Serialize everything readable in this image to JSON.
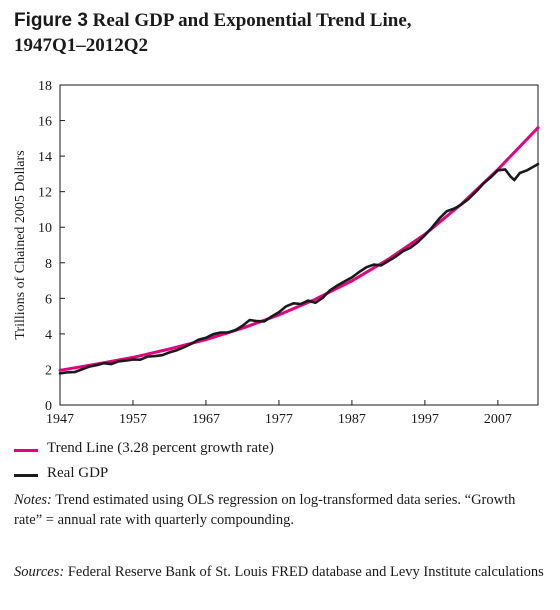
{
  "figure": {
    "label": "Figure 3",
    "title_main": "Real GDP and Exponential Trend Line,",
    "title_line2": "1947Q1–2012Q2"
  },
  "legend": [
    {
      "label": "Trend Line (3.28 percent growth rate)",
      "color": "#e5007e"
    },
    {
      "label": "Real GDP",
      "color": "#1a1a1a"
    }
  ],
  "notes": {
    "prefix": "Notes:",
    "text": " Trend estimated using OLS regression on log-transformed data series. “Growth rate” = annual rate with quarterly compounding."
  },
  "sources": {
    "prefix": "Sources:",
    "text": "  Federal Reserve Bank of St. Louis FRED database and Levy Institute calculations"
  },
  "chart_data": {
    "type": "line",
    "ylabel": "Trillions of Chained 2005 Dollars",
    "xlabel": "",
    "xlim": [
      1947,
      2012.5
    ],
    "ylim": [
      0,
      18
    ],
    "xticks": [
      1947,
      1957,
      1967,
      1977,
      1987,
      1997,
      2007
    ],
    "yticks": [
      0,
      2,
      4,
      6,
      8,
      10,
      12,
      14,
      16,
      18
    ],
    "grid": false,
    "legend_position": "below",
    "series": [
      {
        "name": "Trend Line (3.28 percent growth rate)",
        "color": "#e5007e",
        "x": [
          1947,
          1952,
          1957,
          1962,
          1967,
          1972,
          1977,
          1982,
          1987,
          1992,
          1997,
          2002,
          2007,
          2012.5
        ],
        "y": [
          1.95,
          2.3,
          2.68,
          3.15,
          3.68,
          4.32,
          5.07,
          5.95,
          6.98,
          8.2,
          9.6,
          11.3,
          13.25,
          15.6
        ]
      },
      {
        "name": "Real GDP",
        "color": "#1a1a1a",
        "x": [
          1947,
          1948,
          1949,
          1950,
          1951,
          1952,
          1953,
          1954,
          1955,
          1956,
          1957,
          1958,
          1959,
          1960,
          1961,
          1962,
          1963,
          1964,
          1965,
          1966,
          1967,
          1968,
          1969,
          1970,
          1971,
          1972,
          1973,
          1974,
          1975,
          1976,
          1977,
          1978,
          1979,
          1980,
          1981,
          1982,
          1983,
          1984,
          1985,
          1986,
          1987,
          1988,
          1989,
          1990,
          1991,
          1992,
          1993,
          1994,
          1995,
          1996,
          1997,
          1998,
          1999,
          2000,
          2001,
          2002,
          2003,
          2004,
          2005,
          2006,
          2007,
          2008,
          2008.75,
          2009.25,
          2010,
          2011,
          2012.5
        ],
        "y": [
          1.78,
          1.84,
          1.85,
          2.0,
          2.16,
          2.24,
          2.35,
          2.3,
          2.45,
          2.5,
          2.56,
          2.55,
          2.72,
          2.75,
          2.8,
          2.96,
          3.08,
          3.25,
          3.45,
          3.68,
          3.78,
          3.98,
          4.08,
          4.08,
          4.2,
          4.45,
          4.78,
          4.72,
          4.7,
          4.98,
          5.22,
          5.55,
          5.72,
          5.68,
          5.87,
          5.75,
          6.03,
          6.45,
          6.72,
          6.95,
          7.18,
          7.48,
          7.75,
          7.9,
          7.85,
          8.1,
          8.35,
          8.65,
          8.84,
          9.15,
          9.55,
          10.0,
          10.5,
          10.9,
          11.05,
          11.28,
          11.6,
          12.0,
          12.45,
          12.8,
          13.2,
          13.25,
          12.85,
          12.65,
          13.05,
          13.2,
          13.55
        ]
      }
    ]
  }
}
